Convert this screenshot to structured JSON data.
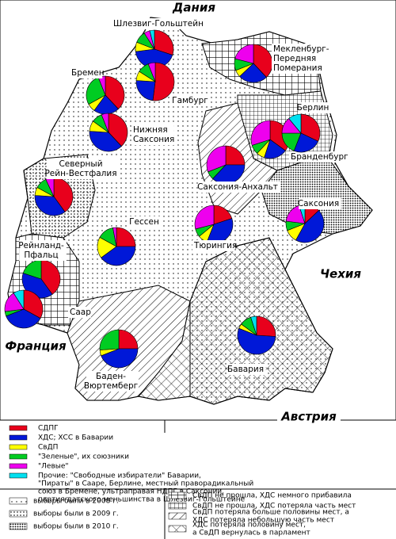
{
  "countries": [
    {
      "label": "Дания"
    },
    {
      "label": "Чехия"
    },
    {
      "label": "Франция"
    },
    {
      "label": "Австрия"
    }
  ],
  "parties": [
    {
      "label": [
        "СДПГ"
      ],
      "color": "#e8001c"
    },
    {
      "label": [
        "ХДС; ХСС в Баварии"
      ],
      "color": "#0018d8"
    },
    {
      "label": [
        "СвДП"
      ],
      "color": "#ffff00"
    },
    {
      "label": [
        "\"Зеленые\", их союзники"
      ],
      "color": "#00cc22"
    },
    {
      "label": [
        "\"Левые\""
      ],
      "color": "#ee00ee"
    },
    {
      "label": [
        "Прочие: \"Свободные избиратели\" Баварии,",
        "\"Пираты\" в Сааре, Берлине, местный праворадикальный",
        "союз в Бремене, ультраправая НДПГ в Саксонии,",
        "партия датского меньшинства в Шлезвиг-Гольштейне"
      ],
      "color": "#00e0f0"
    }
  ],
  "states": [
    {
      "label": [
        "Шлезвиг-Гольштейн"
      ],
      "values": [
        30,
        43,
        8,
        10,
        5,
        4
      ]
    },
    {
      "label": [
        "Мекленбург-",
        "Передняя",
        "Померания"
      ],
      "values": [
        38,
        25,
        6,
        10,
        21,
        0
      ]
    },
    {
      "label": [
        "Бремен"
      ],
      "values": [
        38,
        22,
        7,
        27,
        6,
        0
      ]
    },
    {
      "label": [
        "Гамбург"
      ],
      "values": [
        52,
        24,
        8,
        10,
        6,
        0
      ]
    },
    {
      "label": [
        "Нижняя",
        "Саксония"
      ],
      "values": [
        38,
        38,
        9,
        9,
        6,
        0
      ]
    },
    {
      "label": [
        "Северный",
        "Рейн-Вестфалия"
      ],
      "values": [
        40,
        36,
        7,
        10,
        7,
        0
      ]
    },
    {
      "label": [
        "Саксония-Анхальт"
      ],
      "values": [
        25,
        37,
        0,
        7,
        31,
        0
      ]
    },
    {
      "label": [
        "Бранденбург"
      ],
      "values": [
        35,
        20,
        7,
        8,
        30,
        0
      ]
    },
    {
      "label": [
        "Берлин"
      ],
      "values": [
        32,
        24,
        0,
        19,
        14,
        11
      ]
    },
    {
      "label": [
        "Саксония"
      ],
      "values": [
        13,
        45,
        11,
        8,
        18,
        5
      ]
    },
    {
      "label": [
        "Тюрингия"
      ],
      "values": [
        20,
        36,
        8,
        7,
        29,
        0
      ]
    },
    {
      "label": [
        "Гессен"
      ],
      "values": [
        25,
        40,
        18,
        14,
        3,
        0
      ]
    },
    {
      "label": [
        "Рейнланд-",
        "Пфальц"
      ],
      "values": [
        40,
        40,
        0,
        20,
        0,
        0
      ]
    },
    {
      "label": [
        "Саар"
      ],
      "values": [
        33,
        36,
        0,
        4,
        18,
        9
      ]
    },
    {
      "label": [
        "Баден-",
        "Вюртемберг"
      ],
      "values": [
        25,
        44,
        5,
        26,
        0,
        0
      ]
    },
    {
      "label": [
        "Бавария"
      ],
      "values": [
        26,
        55,
        4,
        10,
        0,
        5
      ]
    }
  ],
  "patterns": [
    {
      "label": [
        "выборы были в 2008 г."
      ]
    },
    {
      "label": [
        "выборы были в 2009 г."
      ]
    },
    {
      "label": [
        "выборы были в 2010 г."
      ]
    },
    {
      "label": [
        "СвДП не прошла, ХДС немного прибавила"
      ]
    },
    {
      "label": [
        "СвДП не прошла, ХДС потеряла часть мест"
      ]
    },
    {
      "label": [
        "СвДП потеряла больше половины мест, а",
        "ХДС потеряла небольшую часть мест"
      ]
    },
    {
      "label": [
        "ХДС потеряла половину мест,",
        "а СвДП вернулась в парламент"
      ]
    }
  ]
}
